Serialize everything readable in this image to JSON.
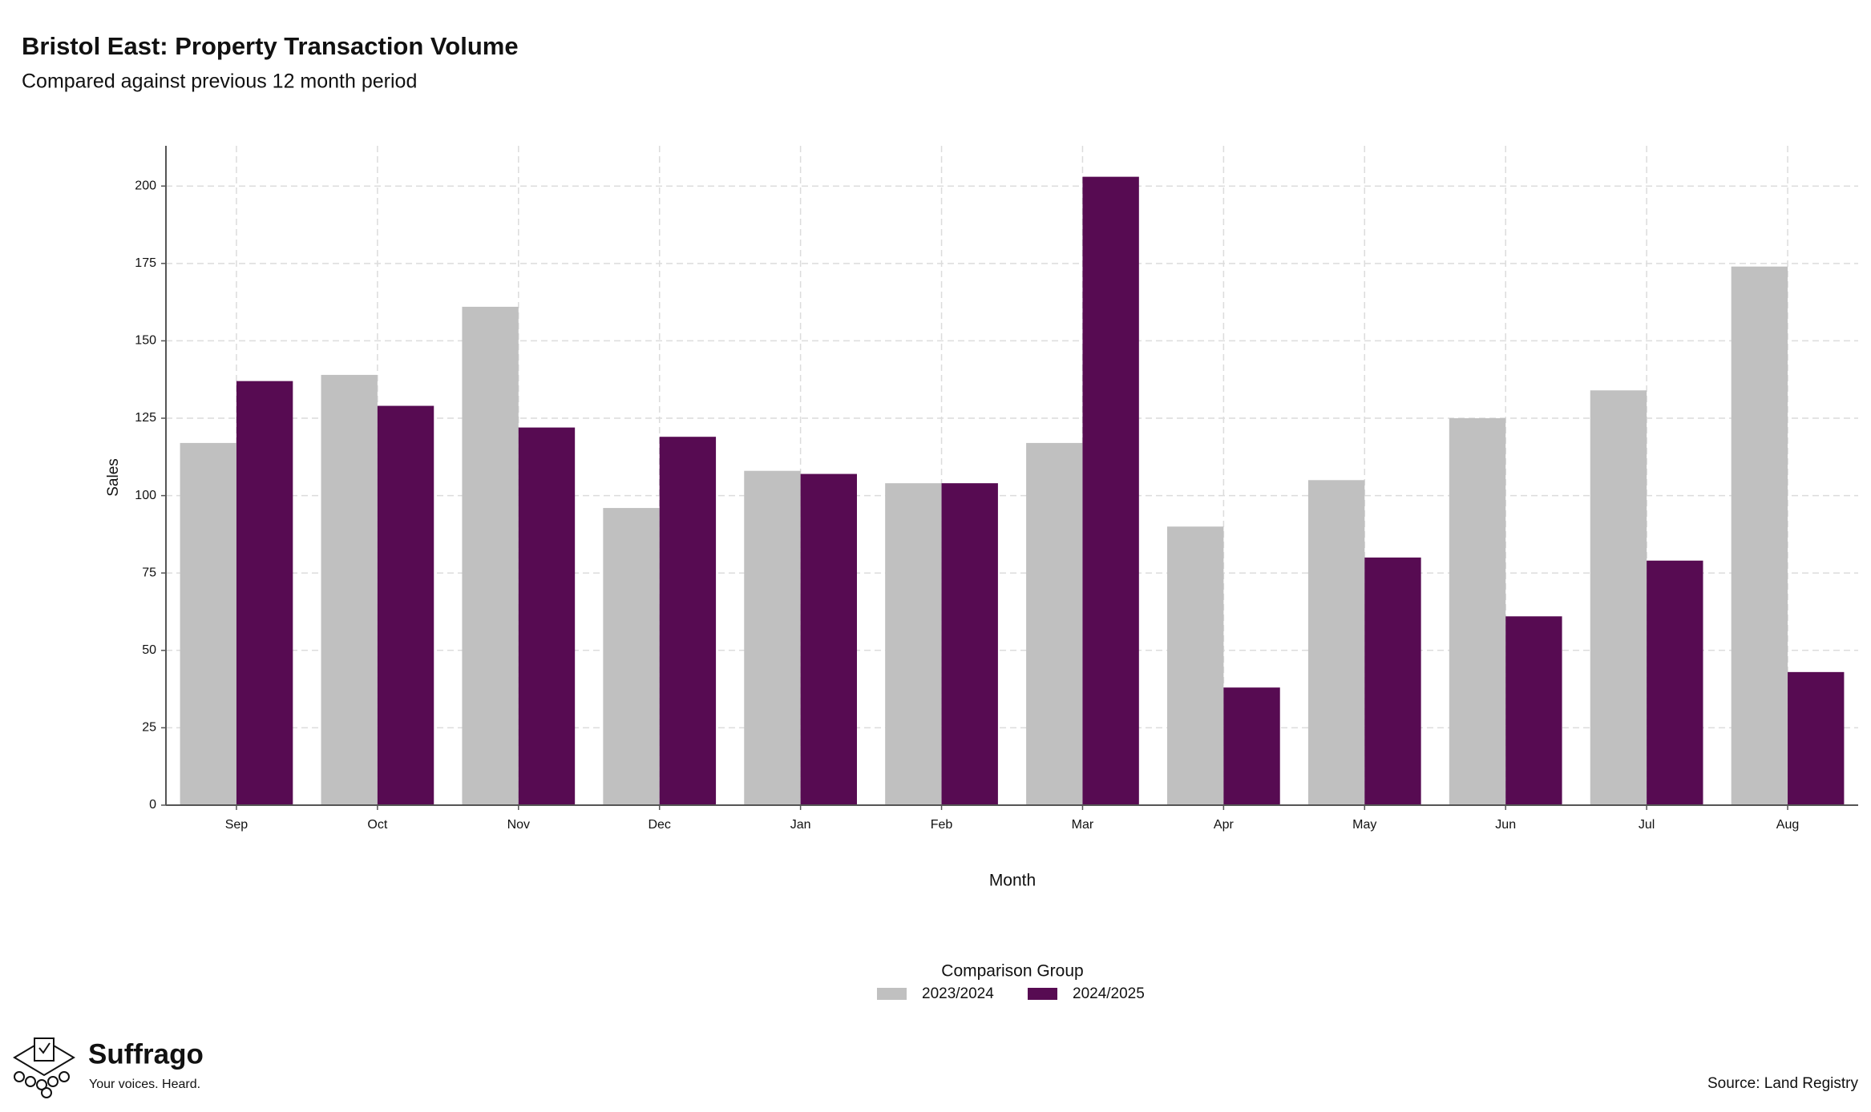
{
  "chart_data": {
    "type": "bar",
    "title": "Bristol East: Property Transaction Volume",
    "subtitle": "Compared against previous 12 month period",
    "x_label": "Month",
    "y_label": "Sales",
    "categories": [
      "Sep",
      "Oct",
      "Nov",
      "Dec",
      "Jan",
      "Feb",
      "Mar",
      "Apr",
      "May",
      "Jun",
      "Jul",
      "Aug"
    ],
    "series": [
      {
        "name": "2023/2024",
        "color": "#c0c0c0",
        "values": [
          117,
          139,
          161,
          96,
          108,
          104,
          117,
          90,
          105,
          125,
          134,
          174
        ]
      },
      {
        "name": "2024/2025",
        "color": "#570b52",
        "values": [
          137,
          129,
          122,
          119,
          107,
          104,
          203,
          38,
          80,
          61,
          79,
          43
        ]
      }
    ],
    "ylim": [
      0,
      213
    ],
    "yticks": [
      0,
      25,
      50,
      75,
      100,
      125,
      150,
      175,
      200
    ],
    "grid": true,
    "legend_title": "Comparison Group",
    "legend": "bottom",
    "source": "Source: Land Registry"
  },
  "logo": {
    "name": "Suffrago",
    "tagline": "Your voices. Heard."
  }
}
